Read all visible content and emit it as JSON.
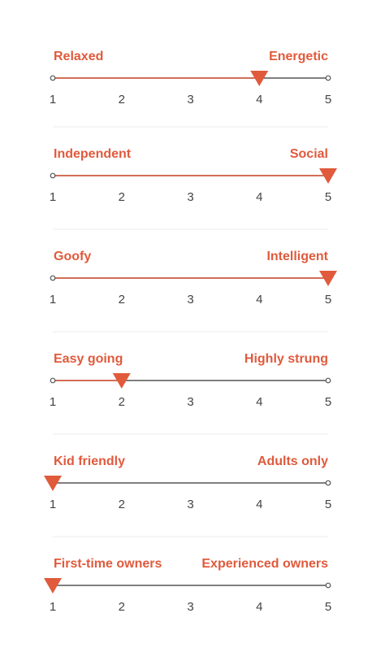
{
  "scale": [
    1,
    2,
    3,
    4,
    5
  ],
  "sliders": [
    {
      "left": "Relaxed",
      "right": "Energetic",
      "value": 4
    },
    {
      "left": "Independent",
      "right": "Social",
      "value": 5
    },
    {
      "left": "Goofy",
      "right": "Intelligent",
      "value": 5
    },
    {
      "left": "Easy going",
      "right": "Highly strung",
      "value": 2
    },
    {
      "left": "Kid friendly",
      "right": "Adults only",
      "value": 1
    },
    {
      "left": "First-time owners",
      "right": "Experienced owners",
      "value": 1
    }
  ]
}
